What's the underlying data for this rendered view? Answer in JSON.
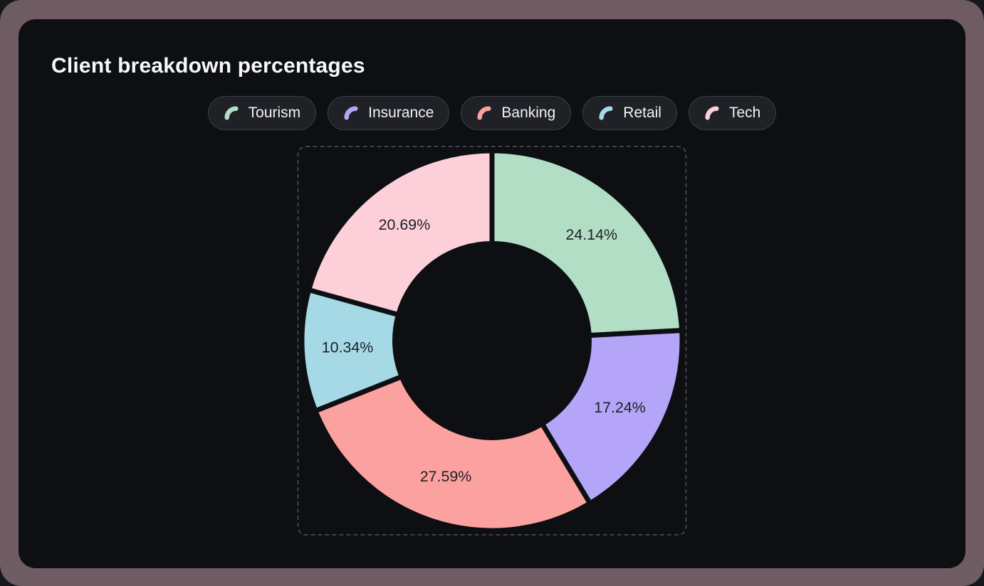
{
  "card": {
    "title": "Client breakdown percentages"
  },
  "theme": {
    "page_bg": "#16171b",
    "frame_color": "#6e5c62",
    "card_bg": "#0d0f13",
    "pill_bg": "#1f2127",
    "pill_border": "#3a3e44",
    "dashed_border": "#3e4146",
    "title_color": "#f7f8f9",
    "slice_label_color": "#1e2126"
  },
  "legend": {
    "items": [
      {
        "label": "Tourism",
        "icon": "arc-icon",
        "color": "#b3dec6"
      },
      {
        "label": "Insurance",
        "icon": "arc-icon",
        "color": "#b5a5f8"
      },
      {
        "label": "Banking",
        "icon": "arc-icon",
        "color": "#fba19f"
      },
      {
        "label": "Retail",
        "icon": "arc-icon",
        "color": "#a6d9e6"
      },
      {
        "label": "Tech",
        "icon": "arc-icon",
        "color": "#fccfd9"
      }
    ]
  },
  "chart_data": {
    "type": "pie",
    "subtype": "donut",
    "title": "Client breakdown percentages",
    "legend_position": "top",
    "start_angle_deg": -90,
    "direction": "clockwise",
    "inner_radius_ratio": 0.51,
    "series": [
      {
        "name": "Tourism",
        "value": 24.14,
        "label": "24.14%",
        "color": "#b3dec6"
      },
      {
        "name": "Insurance",
        "value": 17.24,
        "label": "17.24%",
        "color": "#b5a5f8"
      },
      {
        "name": "Banking",
        "value": 27.59,
        "label": "27.59%",
        "color": "#fba19f"
      },
      {
        "name": "Retail",
        "value": 10.34,
        "label": "10.34%",
        "color": "#a6d9e6"
      },
      {
        "name": "Tech",
        "value": 20.69,
        "label": "20.69%",
        "color": "#fccfd9"
      }
    ]
  }
}
